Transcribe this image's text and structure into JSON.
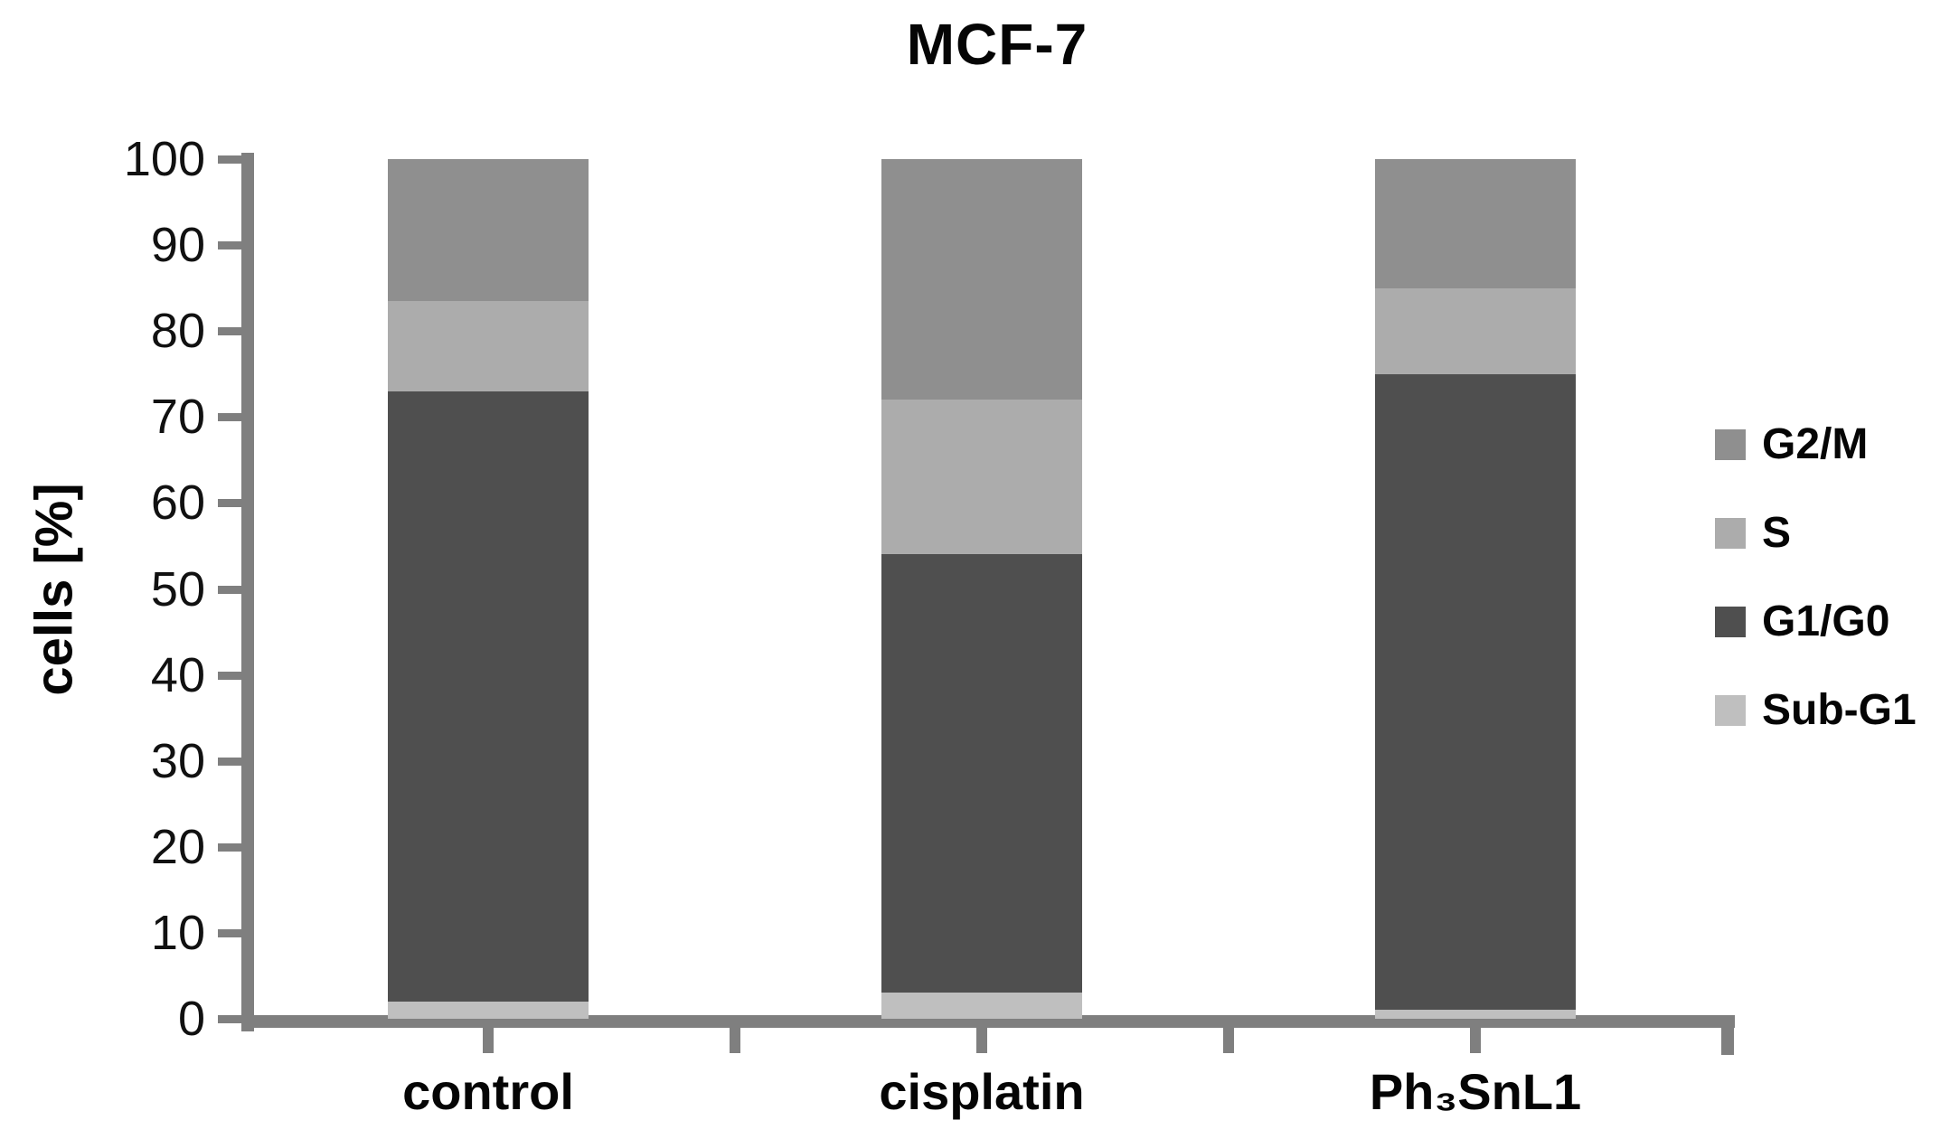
{
  "chart_data": {
    "type": "bar",
    "subtype": "stacked-percent",
    "title": "MCF-7",
    "xlabel": "",
    "ylabel": "cells [%]",
    "ylim": [
      0,
      100
    ],
    "yticks": [
      0,
      10,
      20,
      30,
      40,
      50,
      60,
      70,
      80,
      90,
      100
    ],
    "grid": false,
    "categories": [
      "control",
      "cisplatin",
      "Ph₃SnL1"
    ],
    "series": [
      {
        "name": "Sub-G1",
        "color": "#bfbfbf",
        "values": [
          2,
          3,
          1
        ]
      },
      {
        "name": "G1/G0",
        "color": "#4f4f4f",
        "values": [
          71,
          51,
          74
        ]
      },
      {
        "name": "S",
        "color": "#acacac",
        "values": [
          10.5,
          18,
          10
        ]
      },
      {
        "name": "G2/M",
        "color": "#8f8f8f",
        "values": [
          16.5,
          28,
          15
        ]
      }
    ],
    "legend": [
      "G2/M",
      "S",
      "G1/G0",
      "Sub-G1"
    ],
    "legend_position": "right",
    "axis_color": "#7f7f7f",
    "text_color": "#050505",
    "background_color": "#ffffff"
  }
}
